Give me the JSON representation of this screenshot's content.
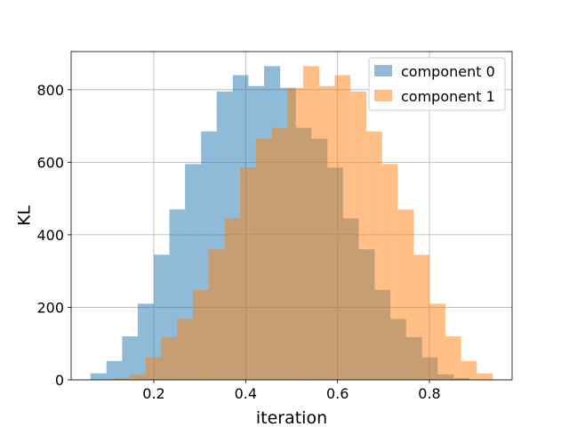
{
  "chart_data": {
    "type": "histogram",
    "xlabel": "iteration",
    "ylabel": "KL",
    "xlim": [
      0.02,
      0.98
    ],
    "ylim": [
      0,
      905
    ],
    "xticks": [
      0.2,
      0.4,
      0.6,
      0.8
    ],
    "yticks": [
      0,
      200,
      400,
      600,
      800
    ],
    "grid": true,
    "legend_position": "upper right",
    "series": [
      {
        "name": "component 0",
        "color": "#1f77b4",
        "alpha": 0.5,
        "bins": [
          [
            0.062,
            0.097,
            18
          ],
          [
            0.097,
            0.131,
            52
          ],
          [
            0.131,
            0.165,
            120
          ],
          [
            0.165,
            0.2,
            210
          ],
          [
            0.2,
            0.234,
            345
          ],
          [
            0.234,
            0.268,
            470
          ],
          [
            0.268,
            0.303,
            595
          ],
          [
            0.303,
            0.337,
            685
          ],
          [
            0.337,
            0.372,
            795
          ],
          [
            0.372,
            0.406,
            840
          ],
          [
            0.406,
            0.44,
            810
          ],
          [
            0.44,
            0.475,
            865
          ],
          [
            0.475,
            0.509,
            805
          ],
          [
            0.509,
            0.543,
            695
          ],
          [
            0.543,
            0.578,
            665
          ],
          [
            0.578,
            0.612,
            585
          ],
          [
            0.612,
            0.646,
            445
          ],
          [
            0.646,
            0.681,
            360
          ],
          [
            0.681,
            0.715,
            248
          ],
          [
            0.715,
            0.749,
            168
          ],
          [
            0.749,
            0.784,
            118
          ],
          [
            0.784,
            0.818,
            62
          ],
          [
            0.818,
            0.853,
            15
          ],
          [
            0.853,
            0.887,
            5
          ]
        ]
      },
      {
        "name": "component 1",
        "color": "#ff7f0e",
        "alpha": 0.5,
        "bins": [
          [
            0.113,
            0.147,
            5
          ],
          [
            0.147,
            0.182,
            15
          ],
          [
            0.182,
            0.216,
            62
          ],
          [
            0.216,
            0.25,
            118
          ],
          [
            0.25,
            0.285,
            168
          ],
          [
            0.285,
            0.319,
            248
          ],
          [
            0.319,
            0.354,
            360
          ],
          [
            0.354,
            0.388,
            445
          ],
          [
            0.388,
            0.422,
            585
          ],
          [
            0.422,
            0.457,
            665
          ],
          [
            0.457,
            0.491,
            695
          ],
          [
            0.491,
            0.525,
            805
          ],
          [
            0.525,
            0.56,
            865
          ],
          [
            0.56,
            0.594,
            810
          ],
          [
            0.594,
            0.628,
            840
          ],
          [
            0.628,
            0.663,
            795
          ],
          [
            0.663,
            0.697,
            685
          ],
          [
            0.697,
            0.731,
            595
          ],
          [
            0.731,
            0.766,
            470
          ],
          [
            0.766,
            0.8,
            345
          ],
          [
            0.8,
            0.835,
            210
          ],
          [
            0.835,
            0.869,
            120
          ],
          [
            0.869,
            0.903,
            52
          ],
          [
            0.903,
            0.938,
            18
          ]
        ]
      }
    ]
  }
}
